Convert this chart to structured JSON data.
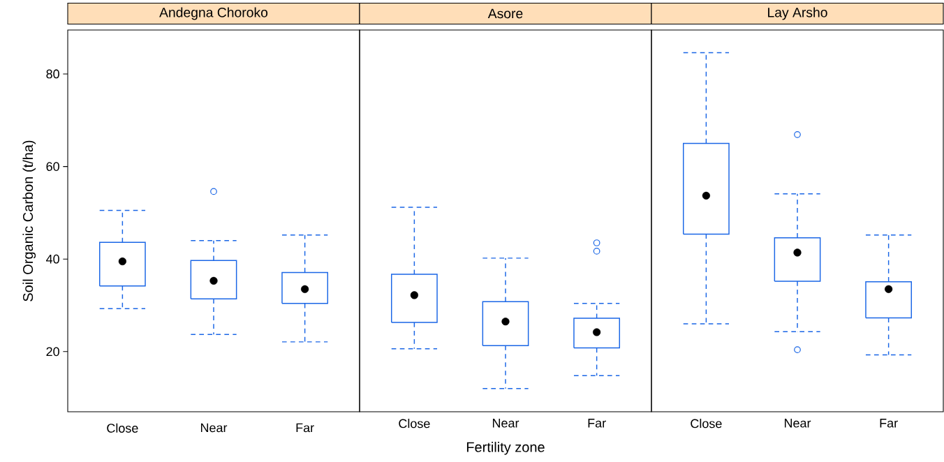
{
  "chart_data": [
    {
      "type": "box",
      "title": "Andegna Choroko",
      "ylabel": "Soil Organic Carbon (t/ha)",
      "categories": [
        "Close",
        "Near",
        "Far"
      ],
      "color": "#1a66e6",
      "ylim": [
        7,
        89.5
      ],
      "yticks": [
        20,
        40,
        60,
        80
      ],
      "boxes": [
        {
          "low": 29.3,
          "q1": 34.2,
          "median": 39.5,
          "q3": 43.6,
          "high": 50.5
        },
        {
          "low": 23.7,
          "q1": 31.4,
          "median": 35.3,
          "q3": 39.7,
          "high": 44.0,
          "outliers": [
            54.6
          ]
        },
        {
          "low": 22.1,
          "q1": 30.4,
          "median": 33.5,
          "q3": 37.1,
          "high": 45.2
        }
      ]
    },
    {
      "type": "box",
      "title": "Asore",
      "xlabel": "Fertility zone",
      "categories": [
        "Close",
        "Near",
        "Far"
      ],
      "color": "#1a66e6",
      "ylim": [
        7,
        89.5
      ],
      "tick_labels": "x",
      "boxes": [
        {
          "low": 20.6,
          "q1": 26.3,
          "median": 32.2,
          "q3": 36.7,
          "high": 51.2
        },
        {
          "low": 12.0,
          "q1": 21.3,
          "median": 26.5,
          "q3": 30.8,
          "high": 40.2
        },
        {
          "low": 14.8,
          "q1": 20.8,
          "median": 24.2,
          "q3": 27.2,
          "high": 30.4,
          "outliers": [
            43.5,
            41.7
          ]
        }
      ]
    },
    {
      "type": "box",
      "title": "Lay Arsho",
      "categories": [
        "Close",
        "Near",
        "Far"
      ],
      "color": "#1a66e6",
      "ylim": [
        7,
        89.5
      ],
      "tick_labels": "x",
      "boxes": [
        {
          "low": 26.0,
          "q1": 45.4,
          "median": 53.7,
          "q3": 65.0,
          "high": 84.6
        },
        {
          "low": 24.3,
          "q1": 35.2,
          "median": 41.4,
          "q3": 44.6,
          "high": 54.1,
          "outliers": [
            66.9,
            20.4
          ]
        },
        {
          "low": 19.3,
          "q1": 27.3,
          "median": 33.5,
          "q3": 35.1,
          "high": 45.2
        }
      ]
    }
  ]
}
